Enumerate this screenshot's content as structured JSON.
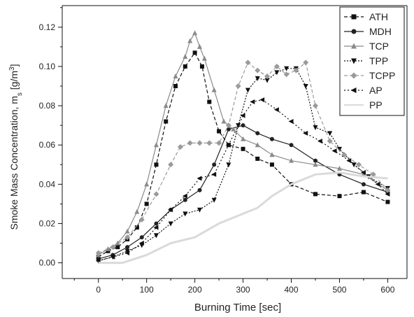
{
  "chart_data": {
    "type": "scatter",
    "xlabel": "Burning Time [sec]",
    "ylabel_main": "Smoke Mass Concentration, m",
    "ylabel_sub": "s",
    "ylabel_unit": " [g/m",
    "ylabel_sup": "3",
    "ylabel_close": "]",
    "xlim": [
      -75,
      640
    ],
    "ylim": [
      -0.008,
      0.131
    ],
    "xticks": [
      0,
      100,
      200,
      300,
      400,
      500,
      600
    ],
    "xtick_labels": [
      "0",
      "100",
      "200",
      "300",
      "400",
      "500",
      "600"
    ],
    "yticks": [
      0.0,
      0.02,
      0.04,
      0.06,
      0.08,
      0.1,
      0.12
    ],
    "ytick_labels": [
      "0.00",
      "0.02",
      "0.04",
      "0.06",
      "0.08",
      "0.10",
      "0.12"
    ],
    "grid": false,
    "legend_position": "top-right",
    "series": [
      {
        "name": "ATH",
        "marker": "square",
        "color": "#111111",
        "dash": "5,3",
        "x": [
          0,
          20,
          40,
          60,
          80,
          100,
          120,
          140,
          160,
          180,
          200,
          215,
          230,
          250,
          270,
          300,
          330,
          360,
          400,
          450,
          500,
          550,
          600
        ],
        "y": [
          0.003,
          0.006,
          0.008,
          0.012,
          0.018,
          0.03,
          0.05,
          0.072,
          0.09,
          0.1,
          0.107,
          0.1,
          0.082,
          0.067,
          0.06,
          0.058,
          0.053,
          0.05,
          0.04,
          0.035,
          0.034,
          0.036,
          0.031
        ]
      },
      {
        "name": "MDH",
        "marker": "circle",
        "color": "#222222",
        "dash": "",
        "x": [
          0,
          30,
          60,
          90,
          120,
          150,
          180,
          210,
          240,
          270,
          300,
          330,
          360,
          400,
          450,
          500,
          550,
          600
        ],
        "y": [
          0.002,
          0.004,
          0.008,
          0.013,
          0.02,
          0.027,
          0.032,
          0.037,
          0.05,
          0.068,
          0.07,
          0.066,
          0.063,
          0.06,
          0.052,
          0.045,
          0.04,
          0.036
        ]
      },
      {
        "name": "TCP",
        "marker": "triangle-up",
        "color": "#8a8a8a",
        "dash": "",
        "x": [
          0,
          20,
          40,
          60,
          80,
          100,
          120,
          140,
          160,
          180,
          190,
          200,
          210,
          220,
          240,
          260,
          280,
          300,
          330,
          360,
          400,
          450,
          500,
          550,
          600
        ],
        "y": [
          0.004,
          0.007,
          0.01,
          0.016,
          0.026,
          0.04,
          0.06,
          0.08,
          0.095,
          0.105,
          0.113,
          0.117,
          0.11,
          0.104,
          0.088,
          0.072,
          0.068,
          0.063,
          0.06,
          0.055,
          0.052,
          0.05,
          0.048,
          0.045,
          0.037
        ]
      },
      {
        "name": "TPP",
        "marker": "triangle-down",
        "color": "#111111",
        "dash": "2,2",
        "x": [
          0,
          30,
          60,
          90,
          120,
          150,
          180,
          210,
          240,
          270,
          290,
          310,
          330,
          350,
          370,
          390,
          410,
          430,
          450,
          480,
          500,
          530,
          560,
          600
        ],
        "y": [
          0.001,
          0.003,
          0.006,
          0.009,
          0.014,
          0.02,
          0.025,
          0.027,
          0.032,
          0.05,
          0.07,
          0.088,
          0.094,
          0.093,
          0.097,
          0.099,
          0.099,
          0.09,
          0.069,
          0.066,
          0.058,
          0.05,
          0.044,
          0.038
        ]
      },
      {
        "name": "TCPP",
        "marker": "diamond",
        "color": "#9a9a9a",
        "dash": "5,3",
        "x": [
          0,
          30,
          60,
          90,
          120,
          150,
          170,
          190,
          210,
          230,
          250,
          270,
          290,
          310,
          330,
          350,
          370,
          390,
          410,
          430,
          450,
          480,
          510,
          540,
          570,
          600
        ],
        "y": [
          0.005,
          0.008,
          0.013,
          0.022,
          0.035,
          0.05,
          0.059,
          0.061,
          0.061,
          0.061,
          0.061,
          0.07,
          0.09,
          0.102,
          0.098,
          0.095,
          0.1,
          0.096,
          0.098,
          0.102,
          0.08,
          0.062,
          0.055,
          0.05,
          0.045,
          0.037
        ]
      },
      {
        "name": "AP",
        "marker": "triangle-left",
        "color": "#111111",
        "dash": "2,3",
        "x": [
          0,
          30,
          60,
          90,
          120,
          150,
          180,
          210,
          240,
          270,
          300,
          320,
          340,
          370,
          400,
          430,
          460,
          490,
          520,
          550,
          580,
          600
        ],
        "y": [
          0.001,
          0.003,
          0.005,
          0.01,
          0.018,
          0.027,
          0.034,
          0.043,
          0.045,
          0.06,
          0.075,
          0.082,
          0.083,
          0.078,
          0.072,
          0.066,
          0.062,
          0.057,
          0.052,
          0.046,
          0.04,
          0.035
        ]
      },
      {
        "name": "PP",
        "marker": "none",
        "color": "#dadada",
        "dash": "",
        "x": [
          0,
          50,
          100,
          150,
          200,
          250,
          300,
          330,
          360,
          400,
          450,
          500,
          550,
          600
        ],
        "y": [
          0.0,
          0.0,
          0.004,
          0.01,
          0.013,
          0.02,
          0.025,
          0.028,
          0.034,
          0.04,
          0.045,
          0.046,
          0.044,
          0.043
        ]
      }
    ]
  }
}
